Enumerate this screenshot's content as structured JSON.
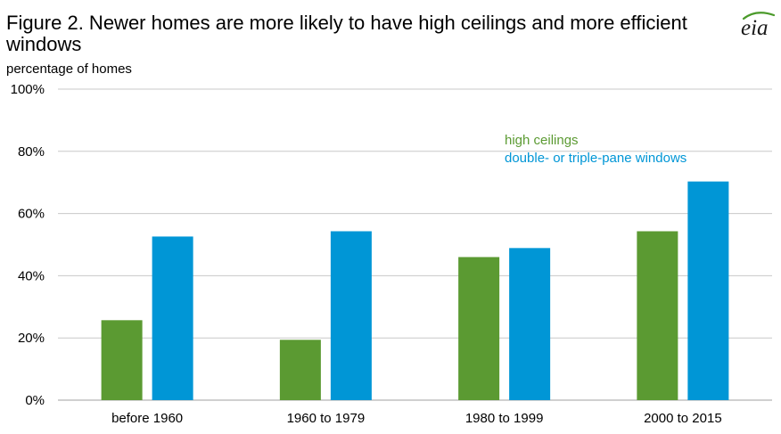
{
  "title": "Figure 2. Newer homes are more likely to have high ceilings and more efficient windows",
  "logo": {
    "text": "eia",
    "icon": "eia-logo-icon",
    "color": "#1a1a1a",
    "swoosh_color": "#4a9a2a"
  },
  "colors": {
    "series_1": "#5b9a32",
    "series_2": "#0096d6",
    "grid": "#c8c8c8",
    "axis": "#a0a0a0"
  },
  "chart_data": {
    "type": "bar",
    "title": "Figure 2. Newer homes are more likely to have high ceilings and more efficient windows",
    "ylabel": "percentage of homes",
    "xlabel": "",
    "categories": [
      "before 1960",
      "1960 to 1979",
      "1980 to 1999",
      "2000 to 2015"
    ],
    "series": [
      {
        "name": "high ceilings",
        "values": [
          25.7,
          19.4,
          46.0,
          54.3
        ]
      },
      {
        "name": "double- or triple-pane windows",
        "values": [
          52.6,
          54.3,
          48.9,
          70.3
        ]
      }
    ],
    "ylim": [
      0,
      100
    ],
    "yticks": [
      0,
      20,
      40,
      60,
      80,
      100
    ],
    "ytick_labels": [
      "0%",
      "20%",
      "40%",
      "60%",
      "80%",
      "100%"
    ],
    "grid": true,
    "legend_position": "top-right"
  }
}
